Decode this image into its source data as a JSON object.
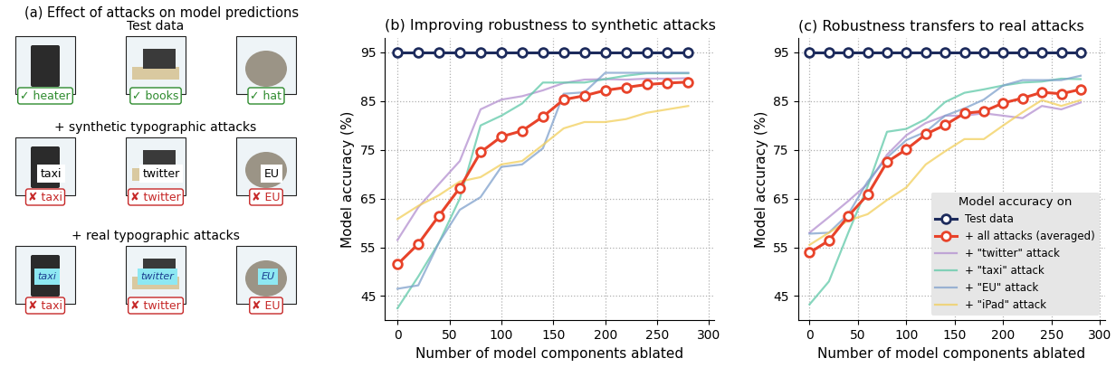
{
  "panel_a": {
    "title": "(a) Effect of attacks on model predictions",
    "rows": [
      {
        "heading": "Test data",
        "images": [
          {
            "prediction": "✓ heater",
            "color": "#2e8b2e"
          },
          {
            "prediction": "✓ books",
            "color": "#2e8b2e"
          },
          {
            "prediction": "✓ hat",
            "color": "#2e8b2e"
          }
        ]
      },
      {
        "heading": "+ synthetic typographic attacks",
        "images": [
          {
            "overlay": "taxi",
            "prediction": "✘ taxi",
            "color": "#c62828"
          },
          {
            "overlay": "twitter",
            "prediction": "✘ twitter",
            "color": "#c62828"
          },
          {
            "overlay": "EU",
            "prediction": "✘ EU",
            "color": "#c62828"
          }
        ]
      },
      {
        "heading": "+ real typographic attacks",
        "images": [
          {
            "overlay": "taxi",
            "prediction": "✘ taxi",
            "color": "#c62828"
          },
          {
            "overlay": "twitter",
            "prediction": "✘ twitter",
            "color": "#c62828"
          },
          {
            "overlay": "EU",
            "prediction": "✘ EU",
            "color": "#c62828"
          }
        ]
      }
    ]
  },
  "chart_data": [
    {
      "type": "line",
      "title": "(b) Improving robustness to synthetic attacks",
      "x_label": "Number of model components ablated",
      "y_label": "Model accuracy (%)",
      "x": [
        0,
        20,
        40,
        60,
        80,
        100,
        120,
        140,
        160,
        180,
        200,
        220,
        240,
        260,
        280
      ],
      "xlim": [
        -12,
        305
      ],
      "xticks": [
        0,
        50,
        100,
        150,
        200,
        250,
        300
      ],
      "ylim": [
        40,
        98
      ],
      "yticks": [
        45,
        55,
        65,
        75,
        85,
        95
      ],
      "grid": true,
      "series": [
        {
          "name": "Test data",
          "color": "#1d2b5c",
          "marker": "o",
          "values": [
            95,
            95,
            95,
            95,
            95,
            95,
            95,
            95,
            95,
            95,
            95,
            95,
            95,
            95,
            95
          ]
        },
        {
          "name": "+ all attacks (averaged)",
          "color": "#e8432a",
          "marker": "o",
          "values": [
            51.5,
            55.7,
            61.5,
            67.2,
            74.5,
            77.7,
            78.9,
            81.8,
            85.3,
            86.1,
            87.2,
            87.8,
            88.4,
            88.7,
            88.9
          ]
        },
        {
          "name": "+ \"twitter\" attack",
          "color": "#b38fd0",
          "values": [
            56.5,
            63.2,
            68.0,
            72.7,
            83.3,
            85.3,
            86.0,
            87.2,
            88.7,
            89.4,
            89.5,
            89.4,
            89.6,
            89.6,
            89.7
          ]
        },
        {
          "name": "+ \"taxi\" attack",
          "color": "#5fc9a8",
          "values": [
            42.5,
            49.0,
            56.0,
            65.0,
            80.0,
            82.0,
            84.5,
            88.8,
            88.8,
            88.8,
            89.5,
            90.2,
            90.7,
            90.7,
            90.7
          ]
        },
        {
          "name": "+ \"EU\" attack",
          "color": "#7fa0cc",
          "values": [
            46.5,
            47.2,
            56.0,
            62.7,
            65.3,
            71.5,
            72.0,
            75.3,
            86.5,
            86.8,
            90.8,
            90.8,
            90.8,
            90.8,
            90.8
          ]
        },
        {
          "name": "+ \"iPad\" attack",
          "color": "#f2cf5b",
          "values": [
            60.8,
            63.5,
            65.7,
            68.5,
            69.4,
            72.0,
            72.7,
            76.0,
            79.4,
            80.7,
            80.7,
            81.3,
            82.6,
            83.3,
            84.0
          ]
        }
      ]
    },
    {
      "type": "line",
      "title": "(c) Robustness transfers to real attacks",
      "x_label": "Number of model components ablated",
      "y_label": "Model accuracy (%)",
      "x": [
        0,
        20,
        40,
        60,
        80,
        100,
        120,
        140,
        160,
        180,
        200,
        220,
        240,
        260,
        280
      ],
      "xlim": [
        -12,
        305
      ],
      "xticks": [
        0,
        50,
        100,
        150,
        200,
        250,
        300
      ],
      "ylim": [
        40,
        98
      ],
      "yticks": [
        45,
        55,
        65,
        75,
        85,
        95
      ],
      "grid": true,
      "legend": "lower right",
      "legend_title": "Model accuracy on",
      "series": [
        {
          "name": "Test data",
          "color": "#1d2b5c",
          "marker": "o",
          "values": [
            95,
            95,
            95,
            95,
            95,
            95,
            95,
            95,
            95,
            95,
            95,
            95,
            95,
            95,
            95
          ]
        },
        {
          "name": "+ all attacks (averaged)",
          "color": "#e8432a",
          "marker": "o",
          "values": [
            53.9,
            56.4,
            61.4,
            65.8,
            72.5,
            75.1,
            78.2,
            80.1,
            82.5,
            82.9,
            84.6,
            85.6,
            86.8,
            86.5,
            87.4
          ]
        },
        {
          "name": "+ \"twitter\" attack",
          "color": "#b38fd0",
          "values": [
            58.0,
            61.2,
            64.5,
            68.0,
            74.0,
            78.0,
            80.5,
            82.0,
            82.0,
            82.5,
            82.0,
            81.5,
            84.0,
            83.3,
            84.7
          ]
        },
        {
          "name": "+ \"taxi\" attack",
          "color": "#5fc9a8",
          "values": [
            43.3,
            48.0,
            58.0,
            67.5,
            78.7,
            79.3,
            81.3,
            84.8,
            86.7,
            87.4,
            88.2,
            88.8,
            89.0,
            89.6,
            89.5
          ]
        },
        {
          "name": "+ \"EU\" attack",
          "color": "#7fa0cc",
          "values": [
            57.8,
            58.0,
            61.8,
            68.5,
            73.4,
            77.0,
            78.7,
            82.0,
            83.5,
            85.3,
            88.2,
            89.3,
            89.3,
            89.3,
            90.2
          ]
        },
        {
          "name": "+ \"iPad\" attack",
          "color": "#f2cf5b",
          "values": [
            55.5,
            58.0,
            60.5,
            61.8,
            64.7,
            67.3,
            72.0,
            74.7,
            77.2,
            77.2,
            80.0,
            82.7,
            85.2,
            84.0,
            85.2
          ]
        }
      ]
    }
  ]
}
